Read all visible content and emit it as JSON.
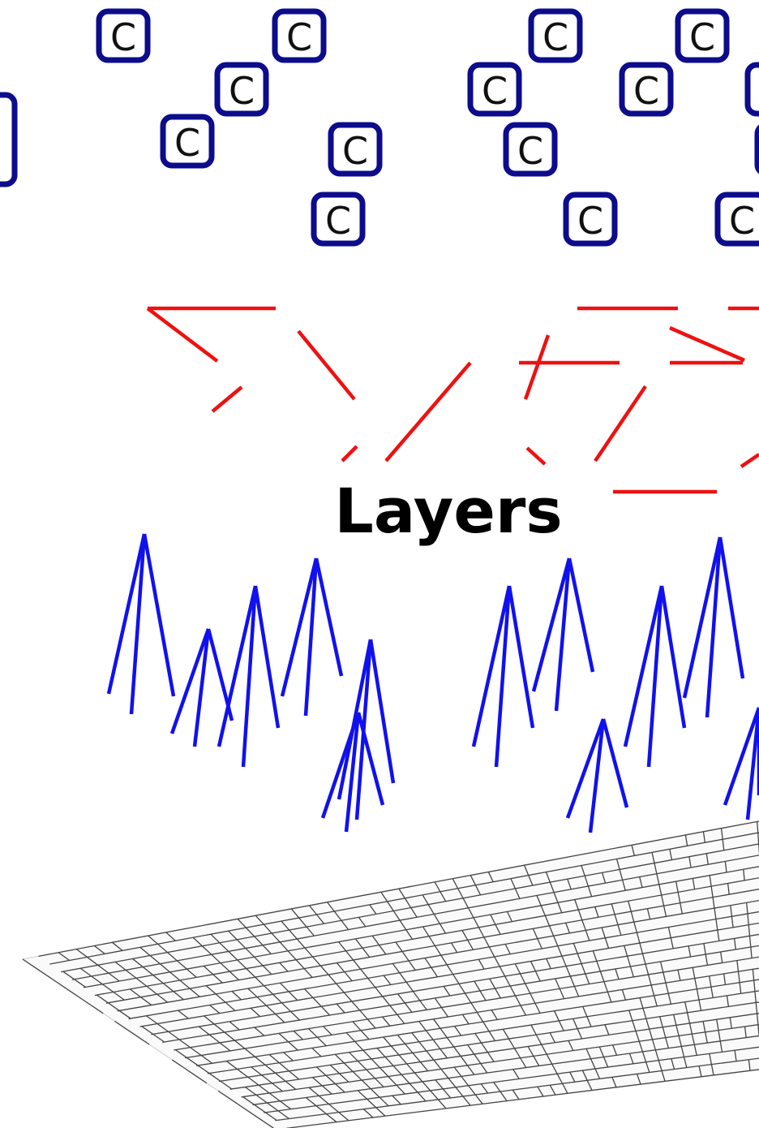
{
  "diagram": {
    "node_letter": "C",
    "layer_label": "Layers",
    "colors": {
      "node_border": "#0c0c8c",
      "node_text": "#111111",
      "connections": "#ee1111",
      "trees": "#1111ee",
      "grid": "#444444",
      "background": "#ffffff"
    }
  }
}
